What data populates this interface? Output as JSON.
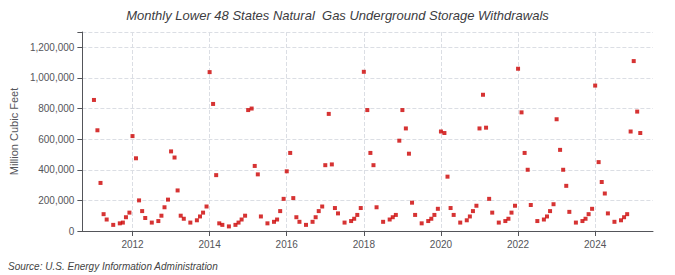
{
  "chart_data": {
    "type": "scatter",
    "title": "Monthly Lower 48 States Natural  Gas Underground Storage Withdrawals",
    "ylabel": "Million Cubic Feet",
    "annotation": "Source: U.S. Energy Information Administration",
    "color": "#cc0000",
    "marker": "square",
    "grid": true,
    "xlim": [
      2010.7,
      2025.5
    ],
    "xticks": [
      2012,
      2014,
      2016,
      2018,
      2020,
      2022,
      2024
    ],
    "ylim": [
      0,
      1300000
    ],
    "yticks": [
      0,
      {
        "value": 200000,
        "label": "200,000"
      },
      {
        "value": 400000,
        "label": "400,000"
      },
      {
        "value": 600000,
        "label": "600,000"
      },
      {
        "value": 800000,
        "label": "800,000"
      },
      {
        "value": 1000000,
        "label": "1,000,000"
      },
      {
        "value": 1200000,
        "label": "1,200,000"
      }
    ],
    "x": [
      2011.0,
      2011.09,
      2011.17,
      2011.25,
      2011.33,
      2011.5,
      2011.67,
      2011.75,
      2011.83,
      2011.92,
      2012.0,
      2012.09,
      2012.17,
      2012.25,
      2012.33,
      2012.5,
      2012.67,
      2012.75,
      2012.83,
      2012.92,
      2013.0,
      2013.09,
      2013.17,
      2013.25,
      2013.33,
      2013.5,
      2013.67,
      2013.75,
      2013.83,
      2013.92,
      2014.0,
      2014.09,
      2014.17,
      2014.25,
      2014.33,
      2014.5,
      2014.67,
      2014.75,
      2014.83,
      2014.92,
      2015.0,
      2015.09,
      2015.17,
      2015.25,
      2015.33,
      2015.5,
      2015.67,
      2015.75,
      2015.83,
      2015.92,
      2016.0,
      2016.09,
      2016.17,
      2016.25,
      2016.33,
      2016.5,
      2016.67,
      2016.75,
      2016.83,
      2016.92,
      2017.0,
      2017.09,
      2017.17,
      2017.25,
      2017.33,
      2017.5,
      2017.67,
      2017.75,
      2017.83,
      2017.92,
      2018.0,
      2018.09,
      2018.17,
      2018.25,
      2018.33,
      2018.5,
      2018.67,
      2018.75,
      2018.83,
      2018.92,
      2019.0,
      2019.09,
      2019.17,
      2019.25,
      2019.33,
      2019.5,
      2019.67,
      2019.75,
      2019.83,
      2019.92,
      2020.0,
      2020.09,
      2020.17,
      2020.25,
      2020.33,
      2020.5,
      2020.67,
      2020.75,
      2020.83,
      2020.92,
      2021.0,
      2021.09,
      2021.17,
      2021.25,
      2021.33,
      2021.5,
      2021.67,
      2021.75,
      2021.83,
      2021.92,
      2022.0,
      2022.09,
      2022.17,
      2022.25,
      2022.33,
      2022.5,
      2022.67,
      2022.75,
      2022.83,
      2022.92,
      2023.0,
      2023.09,
      2023.17,
      2023.25,
      2023.33,
      2023.5,
      2023.67,
      2023.75,
      2023.83,
      2023.92,
      2024.0,
      2024.09,
      2024.17,
      2024.25,
      2024.33,
      2024.5,
      2024.67,
      2024.75,
      2024.83,
      2024.92,
      2025.0,
      2025.09,
      2025.17
    ],
    "values": [
      856000,
      658000,
      314000,
      110000,
      75000,
      40000,
      50000,
      55000,
      90000,
      120000,
      620000,
      475000,
      200000,
      130000,
      85000,
      55000,
      65000,
      100000,
      155000,
      205000,
      520000,
      480000,
      265000,
      100000,
      80000,
      55000,
      70000,
      95000,
      120000,
      160000,
      1038000,
      830000,
      365000,
      50000,
      40000,
      30000,
      40000,
      55000,
      75000,
      100000,
      790000,
      800000,
      425000,
      370000,
      95000,
      50000,
      60000,
      75000,
      130000,
      210000,
      390000,
      510000,
      215000,
      90000,
      60000,
      40000,
      60000,
      90000,
      130000,
      160000,
      430000,
      765000,
      435000,
      150000,
      115000,
      55000,
      65000,
      80000,
      105000,
      150000,
      1040000,
      790000,
      510000,
      430000,
      155000,
      60000,
      75000,
      90000,
      105000,
      590000,
      790000,
      670000,
      505000,
      185000,
      105000,
      50000,
      65000,
      80000,
      105000,
      145000,
      650000,
      640000,
      355000,
      150000,
      105000,
      55000,
      70000,
      95000,
      130000,
      165000,
      670000,
      890000,
      675000,
      210000,
      120000,
      55000,
      65000,
      80000,
      120000,
      165000,
      1060000,
      775000,
      510000,
      400000,
      170000,
      65000,
      75000,
      95000,
      130000,
      175000,
      730000,
      530000,
      400000,
      295000,
      125000,
      55000,
      65000,
      80000,
      110000,
      145000,
      950000,
      450000,
      320000,
      245000,
      115000,
      60000,
      70000,
      90000,
      110000,
      650000,
      1110000,
      780000,
      640000
    ]
  }
}
